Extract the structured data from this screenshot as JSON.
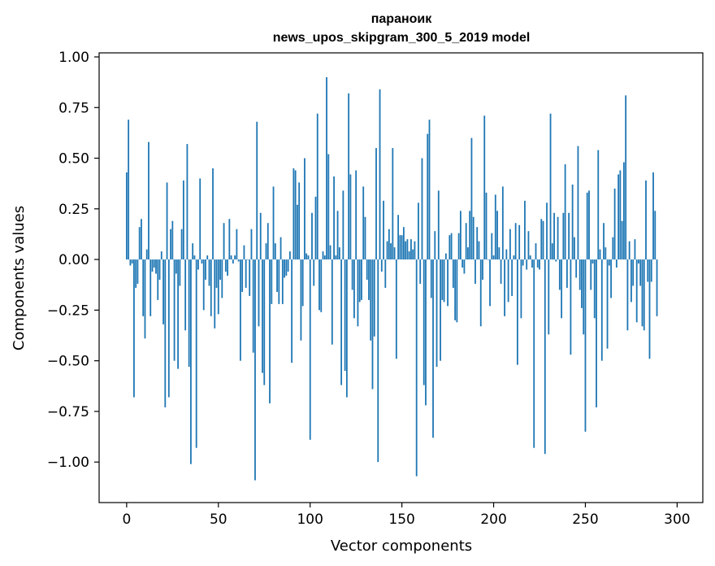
{
  "chart_data": {
    "type": "bar",
    "title_line1": "параноик",
    "title_line2": "news_upos_skipgram_300_5_2019 model",
    "xlabel": "Vector components",
    "ylabel": "Components values",
    "xlim": [
      -15,
      314
    ],
    "ylim": [
      -1.2,
      1.02
    ],
    "xticks": [
      0,
      50,
      100,
      150,
      200,
      250,
      300
    ],
    "xtick_labels": [
      "0",
      "50",
      "100",
      "150",
      "200",
      "250",
      "300"
    ],
    "yticks": [
      1.0,
      0.75,
      0.5,
      0.25,
      0.0,
      -0.25,
      -0.5,
      -0.75,
      -1.0
    ],
    "ytick_labels": [
      "1.00",
      "0.75",
      "0.50",
      "0.25",
      "0.00",
      "−0.25",
      "−0.50",
      "−0.75",
      "−1.00"
    ],
    "bar_color": "#1f77b4",
    "grid": false,
    "values": [
      0.43,
      0.69,
      -0.03,
      -0.02,
      -0.68,
      -0.14,
      -0.12,
      0.16,
      0.2,
      -0.28,
      -0.39,
      0.05,
      0.58,
      -0.28,
      -0.06,
      -0.04,
      -0.07,
      -0.2,
      -0.1,
      0.04,
      -0.32,
      -0.73,
      0.38,
      -0.68,
      0.15,
      0.19,
      -0.5,
      -0.07,
      -0.54,
      -0.13,
      0.15,
      0.39,
      -0.35,
      0.57,
      -0.53,
      -1.01,
      0.08,
      0.02,
      -0.93,
      -0.05,
      0.4,
      -0.02,
      -0.25,
      -0.1,
      0.02,
      -0.13,
      -0.28,
      0.45,
      -0.34,
      -0.14,
      -0.27,
      -0.1,
      -0.19,
      0.18,
      -0.06,
      -0.08,
      0.2,
      0.02,
      -0.02,
      0.02,
      0.15,
      -0.01,
      -0.5,
      -0.16,
      0.07,
      -0.14,
      0.0,
      -0.18,
      0.15,
      -0.46,
      -1.09,
      0.68,
      -0.33,
      0.23,
      -0.56,
      -0.62,
      0.08,
      0.18,
      -0.71,
      -0.22,
      0.36,
      0.08,
      -0.16,
      -0.22,
      0.11,
      -0.22,
      -0.09,
      -0.08,
      -0.06,
      0.04,
      -0.51,
      0.45,
      0.44,
      0.27,
      0.38,
      -0.4,
      -0.23,
      0.5,
      0.03,
      0.02,
      -0.89,
      0.23,
      -0.13,
      0.31,
      0.72,
      -0.25,
      -0.26,
      0.04,
      0.02,
      0.9,
      0.52,
      0.07,
      -0.42,
      0.41,
      0.02,
      0.24,
      0.06,
      -0.62,
      0.34,
      -0.55,
      -0.68,
      0.82,
      0.42,
      -0.15,
      -0.29,
      0.44,
      -0.33,
      -0.21,
      -0.2,
      0.36,
      0.21,
      -0.1,
      -0.2,
      -0.4,
      -0.64,
      -0.38,
      0.55,
      -1.0,
      0.84,
      -0.06,
      0.29,
      -0.14,
      0.09,
      0.15,
      0.08,
      0.55,
      0.06,
      -0.49,
      0.22,
      0.12,
      0.12,
      0.16,
      0.09,
      0.1,
      0.04,
      0.1,
      0.05,
      0.09,
      -1.07,
      0.28,
      -0.12,
      0.5,
      -0.62,
      -0.72,
      0.62,
      0.69,
      -0.19,
      -0.88,
      0.14,
      -0.53,
      0.34,
      -0.5,
      -0.2,
      -0.21,
      0.03,
      -0.23,
      0.12,
      0.13,
      -0.14,
      -0.3,
      -0.31,
      0.13,
      0.24,
      -0.04,
      -0.07,
      0.18,
      0.06,
      0.24,
      0.6,
      0.21,
      -0.12,
      0.16,
      0.09,
      -0.33,
      -0.1,
      0.71,
      0.33,
      0.0,
      -0.23,
      0.13,
      0.02,
      0.32,
      0.24,
      0.06,
      -0.12,
      0.36,
      -0.28,
      0.05,
      -0.21,
      0.15,
      -0.18,
      0.02,
      0.18,
      -0.52,
      0.17,
      -0.29,
      -0.03,
      0.29,
      -0.05,
      0.14,
      0.02,
      -0.04,
      -0.93,
      0.08,
      -0.04,
      -0.05,
      0.2,
      0.19,
      -0.96,
      0.28,
      -0.37,
      0.72,
      0.08,
      0.23,
      -0.01,
      0.21,
      -0.15,
      -0.29,
      0.23,
      0.47,
      -0.14,
      0.23,
      -0.47,
      0.37,
      0.11,
      -0.09,
      0.56,
      -0.15,
      -0.24,
      -0.37,
      -0.85,
      0.33,
      0.34,
      -0.15,
      -0.02,
      -0.29,
      -0.73,
      0.54,
      0.05,
      -0.5,
      0.18,
      0.06,
      -0.44,
      -0.03,
      -0.19,
      0.11,
      0.35,
      -0.04,
      0.42,
      0.44,
      0.19,
      0.48,
      0.81,
      -0.35,
      0.09,
      -0.21,
      -0.13,
      0.1,
      -0.31,
      -0.02,
      -0.13,
      -0.33,
      -0.35,
      0.39,
      -0.11,
      -0.49,
      -0.11,
      0.43,
      0.24,
      -0.28
    ]
  }
}
